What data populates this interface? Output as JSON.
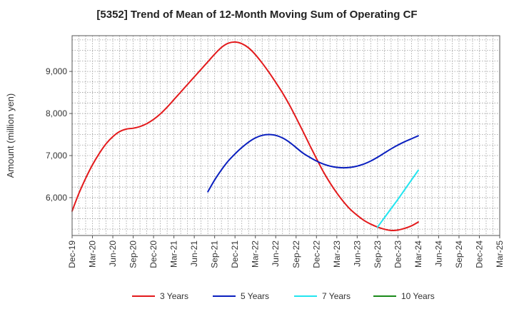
{
  "chart_data": {
    "type": "line",
    "title": "[5352]  Trend of Mean of 12-Month Moving Sum of Operating CF",
    "xlabel": "",
    "ylabel": "Amount (million yen)",
    "ylim": [
      5100,
      9850
    ],
    "y_ticks": [
      6000,
      7000,
      8000,
      9000
    ],
    "y_tick_labels": [
      "6,000",
      "7,000",
      "8,000",
      "9,000"
    ],
    "x_start": "Dec-19",
    "x_end": "Mar-25",
    "x_ticks": [
      "Dec-19",
      "Mar-20",
      "Jun-20",
      "Sep-20",
      "Dec-20",
      "Mar-21",
      "Jun-21",
      "Sep-21",
      "Dec-21",
      "Mar-22",
      "Jun-22",
      "Sep-22",
      "Dec-22",
      "Mar-23",
      "Jun-23",
      "Sep-23",
      "Dec-23",
      "Mar-24",
      "Jun-24",
      "Sep-24",
      "Dec-24",
      "Mar-25"
    ],
    "grid": true,
    "legend_position": "bottom",
    "series": [
      {
        "name": "3 Years",
        "color": "#e31a1c",
        "x": [
          "Dec-19",
          "Jan-20",
          "Feb-20",
          "Mar-20",
          "Apr-20",
          "May-20",
          "Jun-20",
          "Jul-20",
          "Aug-20",
          "Sep-20",
          "Oct-20",
          "Nov-20",
          "Dec-20",
          "Jan-21",
          "Feb-21",
          "Mar-21",
          "Apr-21",
          "May-21",
          "Jun-21",
          "Jul-21",
          "Aug-21",
          "Sep-21",
          "Oct-21",
          "Nov-21",
          "Dec-21",
          "Jan-22",
          "Feb-22",
          "Mar-22",
          "Apr-22",
          "May-22",
          "Jun-22",
          "Jul-22",
          "Aug-22",
          "Sep-22",
          "Oct-22",
          "Nov-22",
          "Dec-22",
          "Jan-23",
          "Feb-23",
          "Mar-23",
          "Apr-23",
          "May-23",
          "Jun-23",
          "Jul-23",
          "Aug-23",
          "Sep-23",
          "Oct-23",
          "Nov-23",
          "Dec-23",
          "Jan-24",
          "Feb-24",
          "Mar-24"
        ],
        "values": [
          5680,
          6100,
          6460,
          6780,
          7050,
          7280,
          7450,
          7570,
          7630,
          7650,
          7690,
          7760,
          7860,
          7990,
          8150,
          8330,
          8510,
          8690,
          8870,
          9050,
          9230,
          9410,
          9570,
          9670,
          9700,
          9660,
          9560,
          9400,
          9200,
          8980,
          8740,
          8490,
          8210,
          7900,
          7580,
          7250,
          6930,
          6620,
          6350,
          6110,
          5900,
          5720,
          5580,
          5460,
          5370,
          5300,
          5250,
          5220,
          5230,
          5270,
          5330,
          5420
        ]
      },
      {
        "name": "5 Years",
        "color": "#0a1fbf",
        "x": [
          "Aug-21",
          "Sep-21",
          "Oct-21",
          "Nov-21",
          "Dec-21",
          "Jan-22",
          "Feb-22",
          "Mar-22",
          "Apr-22",
          "May-22",
          "Jun-22",
          "Jul-22",
          "Aug-22",
          "Sep-22",
          "Oct-22",
          "Nov-22",
          "Dec-22",
          "Jan-23",
          "Feb-23",
          "Mar-23",
          "Apr-23",
          "May-23",
          "Jun-23",
          "Jul-23",
          "Aug-23",
          "Sep-23",
          "Oct-23",
          "Nov-23",
          "Dec-23",
          "Jan-24",
          "Feb-24",
          "Mar-24"
        ],
        "values": [
          6140,
          6420,
          6660,
          6870,
          7040,
          7190,
          7320,
          7420,
          7480,
          7500,
          7480,
          7420,
          7320,
          7190,
          7060,
          6960,
          6870,
          6800,
          6750,
          6720,
          6710,
          6720,
          6750,
          6800,
          6870,
          6960,
          7060,
          7160,
          7250,
          7330,
          7400,
          7470
        ]
      },
      {
        "name": "7 Years",
        "color": "#22e5f0",
        "x": [
          "Sep-23",
          "Oct-23",
          "Nov-23",
          "Dec-23",
          "Jan-24",
          "Feb-24",
          "Mar-24"
        ],
        "values": [
          5300,
          5520,
          5740,
          5960,
          6190,
          6420,
          6650
        ]
      },
      {
        "name": "10 Years",
        "color": "#1a8a1a",
        "x": [],
        "values": []
      }
    ]
  }
}
